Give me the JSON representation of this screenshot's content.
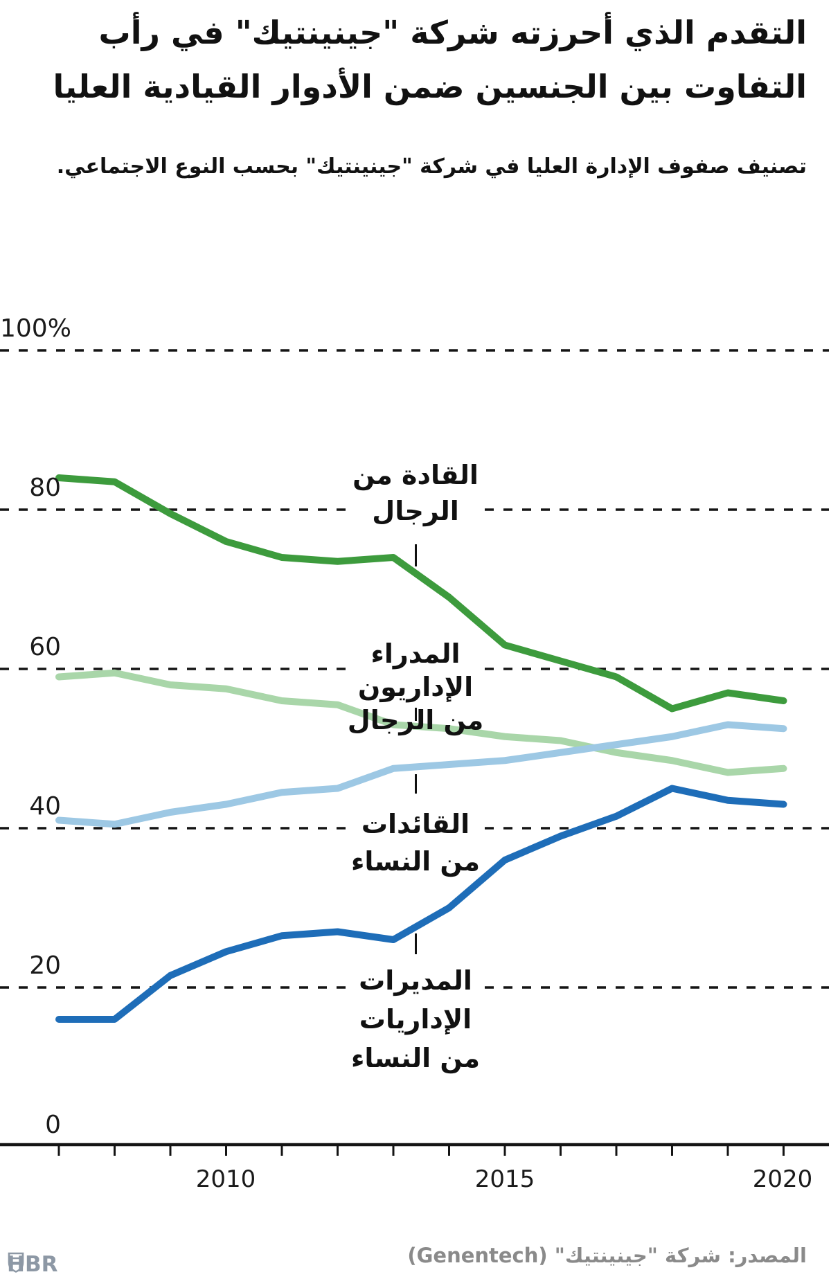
{
  "header": {
    "title_line1": "التقدم الذي أحرزته شركة \"جينينتيك\" في رأب",
    "title_line2": "التفاوت بين الجنسين ضمن الأدوار القيادية العليا",
    "subtitle": "تصنيف صفوف الإدارة العليا في شركة \"جينينتيك\" بحسب النوع الاجتماعي."
  },
  "chart_data": {
    "type": "line",
    "title": "تصنيف صفوف الإدارة العليا في شركة جينينتيك بحسب النوع الاجتماعي",
    "x": [
      2007,
      2008,
      2009,
      2010,
      2011,
      2012,
      2013,
      2014,
      2015,
      2016,
      2017,
      2018,
      2019,
      2020
    ],
    "x_ticklabels": [
      "2010",
      "2015",
      "2020"
    ],
    "y_axis": {
      "labels": [
        "100%",
        "80",
        "60",
        "40",
        "20",
        "0"
      ],
      "values": [
        100,
        80,
        60,
        40,
        20,
        0
      ]
    },
    "ylim": [
      0,
      100
    ],
    "grid": "dashed-horizontal",
    "legend_position": "inline-labels",
    "series": [
      {
        "name": "male-leaders",
        "label_lines": [
          "القادة من",
          "الرجال"
        ],
        "color": "#3d9b3d",
        "values": [
          84,
          83.5,
          79.5,
          76,
          74,
          73.5,
          74,
          69,
          63,
          61,
          59,
          55,
          57,
          56
        ]
      },
      {
        "name": "male-executive-directors",
        "label_lines": [
          "المدراء الإداريون",
          "من الرجال"
        ],
        "color": "#a9d6a9",
        "values": [
          59,
          59.5,
          58,
          57.5,
          56,
          55.5,
          53,
          52.5,
          51.5,
          51,
          49.5,
          48.5,
          47,
          47.5
        ]
      },
      {
        "name": "female-leaders",
        "label_lines": [
          "القائدات",
          "من النساء"
        ],
        "color": "#9dc8e4",
        "values": [
          41,
          40.5,
          42,
          43,
          44.5,
          45,
          47.5,
          48,
          48.5,
          49.5,
          50.5,
          51.5,
          53,
          52.5
        ]
      },
      {
        "name": "female-executive-directors",
        "label_lines": [
          "المديرات",
          "الإداريات",
          "من النساء"
        ],
        "color": "#1e6db8",
        "values": [
          16,
          16,
          21.5,
          24.5,
          26.5,
          27,
          26,
          30,
          36,
          39,
          41.5,
          45,
          43.5,
          43
        ]
      }
    ]
  },
  "footer": {
    "source": "المصدر: شركة \"جينينتيك\" (Genentech)",
    "logo_text": "HBR"
  }
}
